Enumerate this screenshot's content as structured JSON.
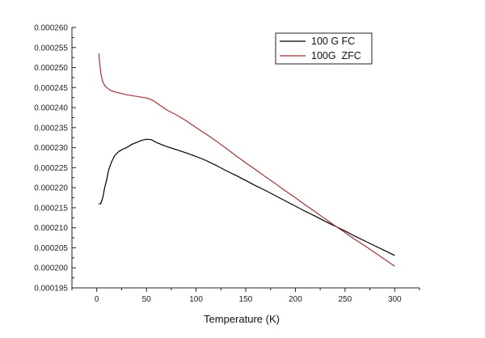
{
  "chart_data": {
    "type": "line",
    "title": "",
    "xlabel": "Temperature (K)",
    "ylabel": "",
    "xlim": [
      -25,
      325
    ],
    "ylim": [
      0.000195,
      0.00026
    ],
    "x_ticks": [
      0,
      50,
      100,
      150,
      200,
      250,
      300
    ],
    "x_tick_labels": [
      "0",
      "50",
      "100",
      "150",
      "200",
      "250",
      "300"
    ],
    "y_ticks": [
      0.000195,
      0.0002,
      0.000205,
      0.00021,
      0.000215,
      0.00022,
      0.000225,
      0.00023,
      0.000235,
      0.00024,
      0.000245,
      0.00025,
      0.000255,
      0.00026
    ],
    "y_tick_labels": [
      "0.000195",
      "0.000200",
      "0.000205",
      "0.000210",
      "0.000215",
      "0.000220",
      "0.000225",
      "0.000230",
      "0.000235",
      "0.000240",
      "0.000245",
      "0.000250",
      "0.000255",
      "0.000260"
    ],
    "grid": false,
    "legend_position": "top-right",
    "series": [
      {
        "name": "100 G FC",
        "color": "#000000",
        "x": [
          2,
          4,
          6,
          8,
          10,
          12,
          15,
          18,
          22,
          26,
          30,
          35,
          40,
          45,
          50,
          55,
          60,
          70,
          80,
          90,
          100,
          110,
          120,
          130,
          140,
          150,
          160,
          170,
          180,
          190,
          200,
          210,
          220,
          230,
          240,
          250,
          260,
          270,
          280,
          290,
          300
        ],
        "y": [
          0.000216,
          0.000216,
          0.0002175,
          0.00022,
          0.000222,
          0.0002245,
          0.0002265,
          0.000228,
          0.000229,
          0.0002296,
          0.00023,
          0.0002308,
          0.0002313,
          0.0002318,
          0.0002321,
          0.000232,
          0.0002313,
          0.0002303,
          0.0002295,
          0.0002287,
          0.0002278,
          0.0002268,
          0.0002256,
          0.0002243,
          0.0002231,
          0.0002218,
          0.0002205,
          0.0002193,
          0.000218,
          0.0002167,
          0.0002154,
          0.0002141,
          0.0002129,
          0.0002116,
          0.0002104,
          0.0002092,
          0.0002079,
          0.0002067,
          0.0002055,
          0.0002043,
          0.0002031
        ]
      },
      {
        "name": "100G  ZFC",
        "color": "#a33333",
        "x": [
          2,
          3,
          4,
          5,
          6,
          8,
          10,
          12,
          15,
          20,
          25,
          30,
          35,
          40,
          45,
          50,
          55,
          60,
          70,
          80,
          90,
          100,
          110,
          120,
          130,
          140,
          150,
          160,
          170,
          180,
          190,
          200,
          210,
          220,
          230,
          240,
          250,
          260,
          270,
          280,
          290,
          300
        ],
        "y": [
          0.0002535,
          0.000251,
          0.0002488,
          0.0002474,
          0.0002465,
          0.0002455,
          0.000245,
          0.0002446,
          0.0002442,
          0.0002438,
          0.0002435,
          0.0002432,
          0.000243,
          0.0002428,
          0.0002426,
          0.0002424,
          0.000242,
          0.0002412,
          0.0002395,
          0.0002382,
          0.0002367,
          0.000235,
          0.0002334,
          0.0002317,
          0.0002299,
          0.000228,
          0.0002262,
          0.0002245,
          0.0002227,
          0.000221,
          0.0002192,
          0.0002175,
          0.0002157,
          0.000214,
          0.0002122,
          0.0002105,
          0.0002088,
          0.0002071,
          0.0002055,
          0.0002038,
          0.0002021,
          0.0002004
        ]
      }
    ]
  }
}
